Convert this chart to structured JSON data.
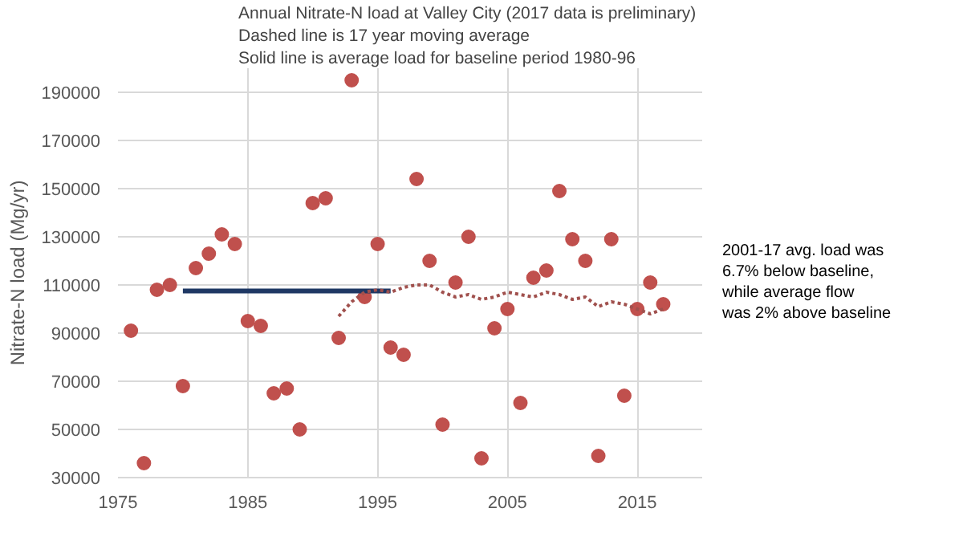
{
  "chart_data": {
    "type": "scatter",
    "title": "Annual Nitrate-N load at Valley City (2017 data is preliminary)",
    "subtitle": "Dashed line is 17 year moving average",
    "ylabel": "Nitrate-N load (Mg/yr)",
    "annotations": [
      "Solid line is average load for baseline period 1980-96",
      "2001-17 avg. load was\n6.7% below baseline,\nwhile average flow\nwas 2% above baseline"
    ],
    "series": [
      {
        "color": "#c0504d",
        "marker": "circle",
        "x": [
          1976,
          1977,
          1978,
          1979,
          1980,
          1981,
          1982,
          1983,
          1984,
          1985,
          1986,
          1987,
          1988,
          1989,
          1990,
          1991,
          1992,
          1993,
          1994,
          1995,
          1996,
          1997,
          1998,
          1999,
          2000,
          2001,
          2002,
          2003,
          2004,
          2005,
          2006,
          2007,
          2008,
          2009,
          2010,
          2011,
          2012,
          2013,
          2014,
          2015,
          2016,
          2017
        ],
        "values": [
          91000,
          36000,
          108000,
          110000,
          68000,
          117000,
          123000,
          131000,
          127000,
          95000,
          93000,
          65000,
          67000,
          50000,
          144000,
          146000,
          88000,
          195000,
          105000,
          127000,
          84000,
          81000,
          154000,
          120000,
          52000,
          111000,
          130000,
          38000,
          92000,
          100000,
          61000,
          113000,
          116000,
          149000,
          129000,
          120000,
          39000,
          129000,
          64000,
          100000,
          111000,
          102000
        ]
      },
      {
        "type": "line",
        "color": "#1f3864",
        "line_style": "solid",
        "x": [
          1980,
          1996
        ],
        "values": [
          107500,
          107500
        ]
      },
      {
        "type": "line",
        "color": "#a0504d",
        "line_style": "dotted",
        "x": [
          1992,
          1993,
          1994,
          1995,
          1996,
          1997,
          1998,
          1999,
          2000,
          2001,
          2002,
          2003,
          2004,
          2005,
          2006,
          2007,
          2008,
          2009,
          2010,
          2011,
          2012,
          2013,
          2014,
          2015,
          2016,
          2017
        ],
        "values": [
          97000,
          103000,
          107000,
          108000,
          107000,
          109000,
          110000,
          110000,
          107000,
          105000,
          106000,
          104000,
          105000,
          107000,
          106000,
          105000,
          107000,
          106000,
          104000,
          105000,
          101000,
          103000,
          102000,
          100000,
          98000,
          100000
        ]
      }
    ],
    "xlim": [
      1975,
      2020
    ],
    "xticks": [
      1975,
      1985,
      1995,
      2005,
      2015
    ],
    "ylim": [
      30000,
      200000
    ],
    "yticks": [
      30000,
      50000,
      70000,
      90000,
      110000,
      130000,
      150000,
      170000,
      190000
    ],
    "grid": true
  }
}
